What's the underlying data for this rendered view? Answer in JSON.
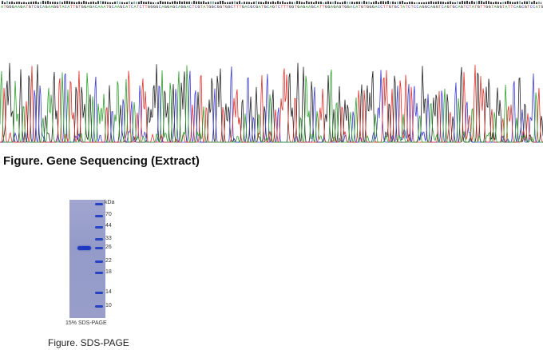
{
  "sequence": {
    "bases": "ATGGGAAGATGTCGCAGAAGGTACATTGTGGAGACAAATGCAAGCATCATCTTGGGGCAGGAGCAGGACTCGTATGGCGGTGGCTTTGACGCGATGCAGTCTTTGGTGAGAAGCATTGGAGAGTGGACATGTGGGACCTTGTGCTATCTCCAGGCAGGTCAGTGCAGTCTATGTTGGTAGGTATTCAGCGTCCATG",
    "colors": {
      "A": "#2ea12e",
      "C": "#3a3ad6",
      "G": "#222222",
      "T": "#e0302a"
    }
  },
  "captions": {
    "gene": "Figure. Gene Sequencing (Extract)",
    "sds": "Figure. SDS-PAGE"
  },
  "gel": {
    "unit": "kDa",
    "markers": [
      "70",
      "44",
      "33",
      "26",
      "22",
      "18",
      "14",
      "10"
    ],
    "caption": "15% SDS-PAGE"
  }
}
